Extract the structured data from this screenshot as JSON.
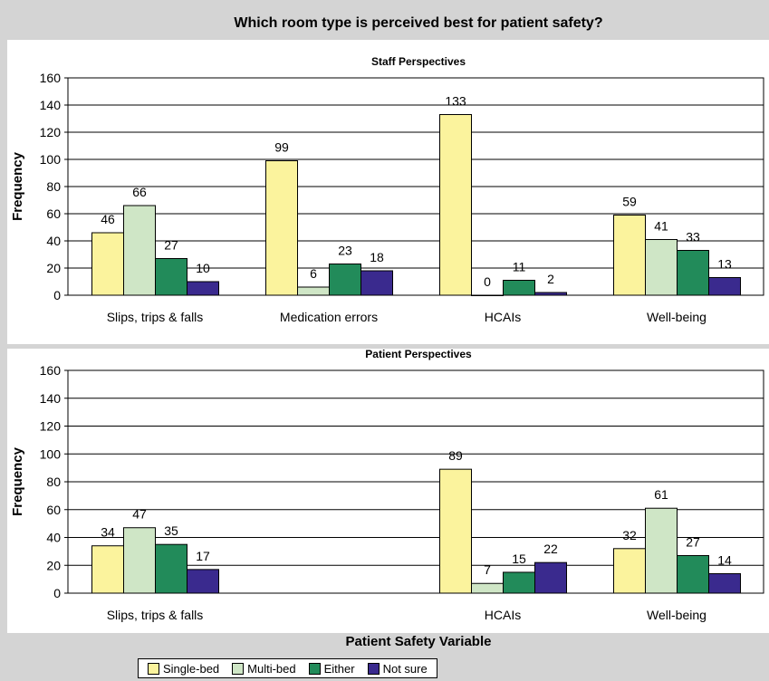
{
  "chart_data": {
    "type": "bar",
    "title": "Which room type is perceived best for patient safety?",
    "xlabel": "Patient Safety Variable",
    "colors": [
      "#fbf39d",
      "#cfe6c6",
      "#228b5a",
      "#3a2a8e"
    ],
    "series_names": [
      "Single-bed",
      "Multi-bed",
      "Either",
      "Not sure"
    ],
    "legend_position": "bottom",
    "grid": true,
    "panels": [
      {
        "subtitle": "Staff Perspectives",
        "ylabel": "Frequency",
        "ylim": [
          0,
          160
        ],
        "yticks": [
          0,
          20,
          40,
          60,
          80,
          100,
          120,
          140,
          160
        ],
        "categories": [
          "Slips, trips & falls",
          "Medication errors",
          "HCAIs",
          "Well-being"
        ],
        "series": [
          {
            "name": "Single-bed",
            "values": [
              46,
              99,
              133,
              59
            ]
          },
          {
            "name": "Multi-bed",
            "values": [
              66,
              6,
              0,
              41
            ]
          },
          {
            "name": "Either",
            "values": [
              27,
              23,
              11,
              33
            ]
          },
          {
            "name": "Not sure",
            "values": [
              10,
              18,
              2,
              13
            ]
          }
        ]
      },
      {
        "subtitle": "Patient Perspectives",
        "ylabel": "Frequency",
        "ylim": [
          0,
          160
        ],
        "yticks": [
          0,
          20,
          40,
          60,
          80,
          100,
          120,
          140,
          160
        ],
        "categories": [
          "Slips, trips & falls",
          "",
          "HCAIs",
          "Well-being"
        ],
        "series": [
          {
            "name": "Single-bed",
            "values": [
              34,
              null,
              89,
              32
            ]
          },
          {
            "name": "Multi-bed",
            "values": [
              47,
              null,
              7,
              61
            ]
          },
          {
            "name": "Either",
            "values": [
              35,
              null,
              15,
              27
            ]
          },
          {
            "name": "Not sure",
            "values": [
              17,
              null,
              22,
              14
            ]
          }
        ]
      }
    ]
  }
}
